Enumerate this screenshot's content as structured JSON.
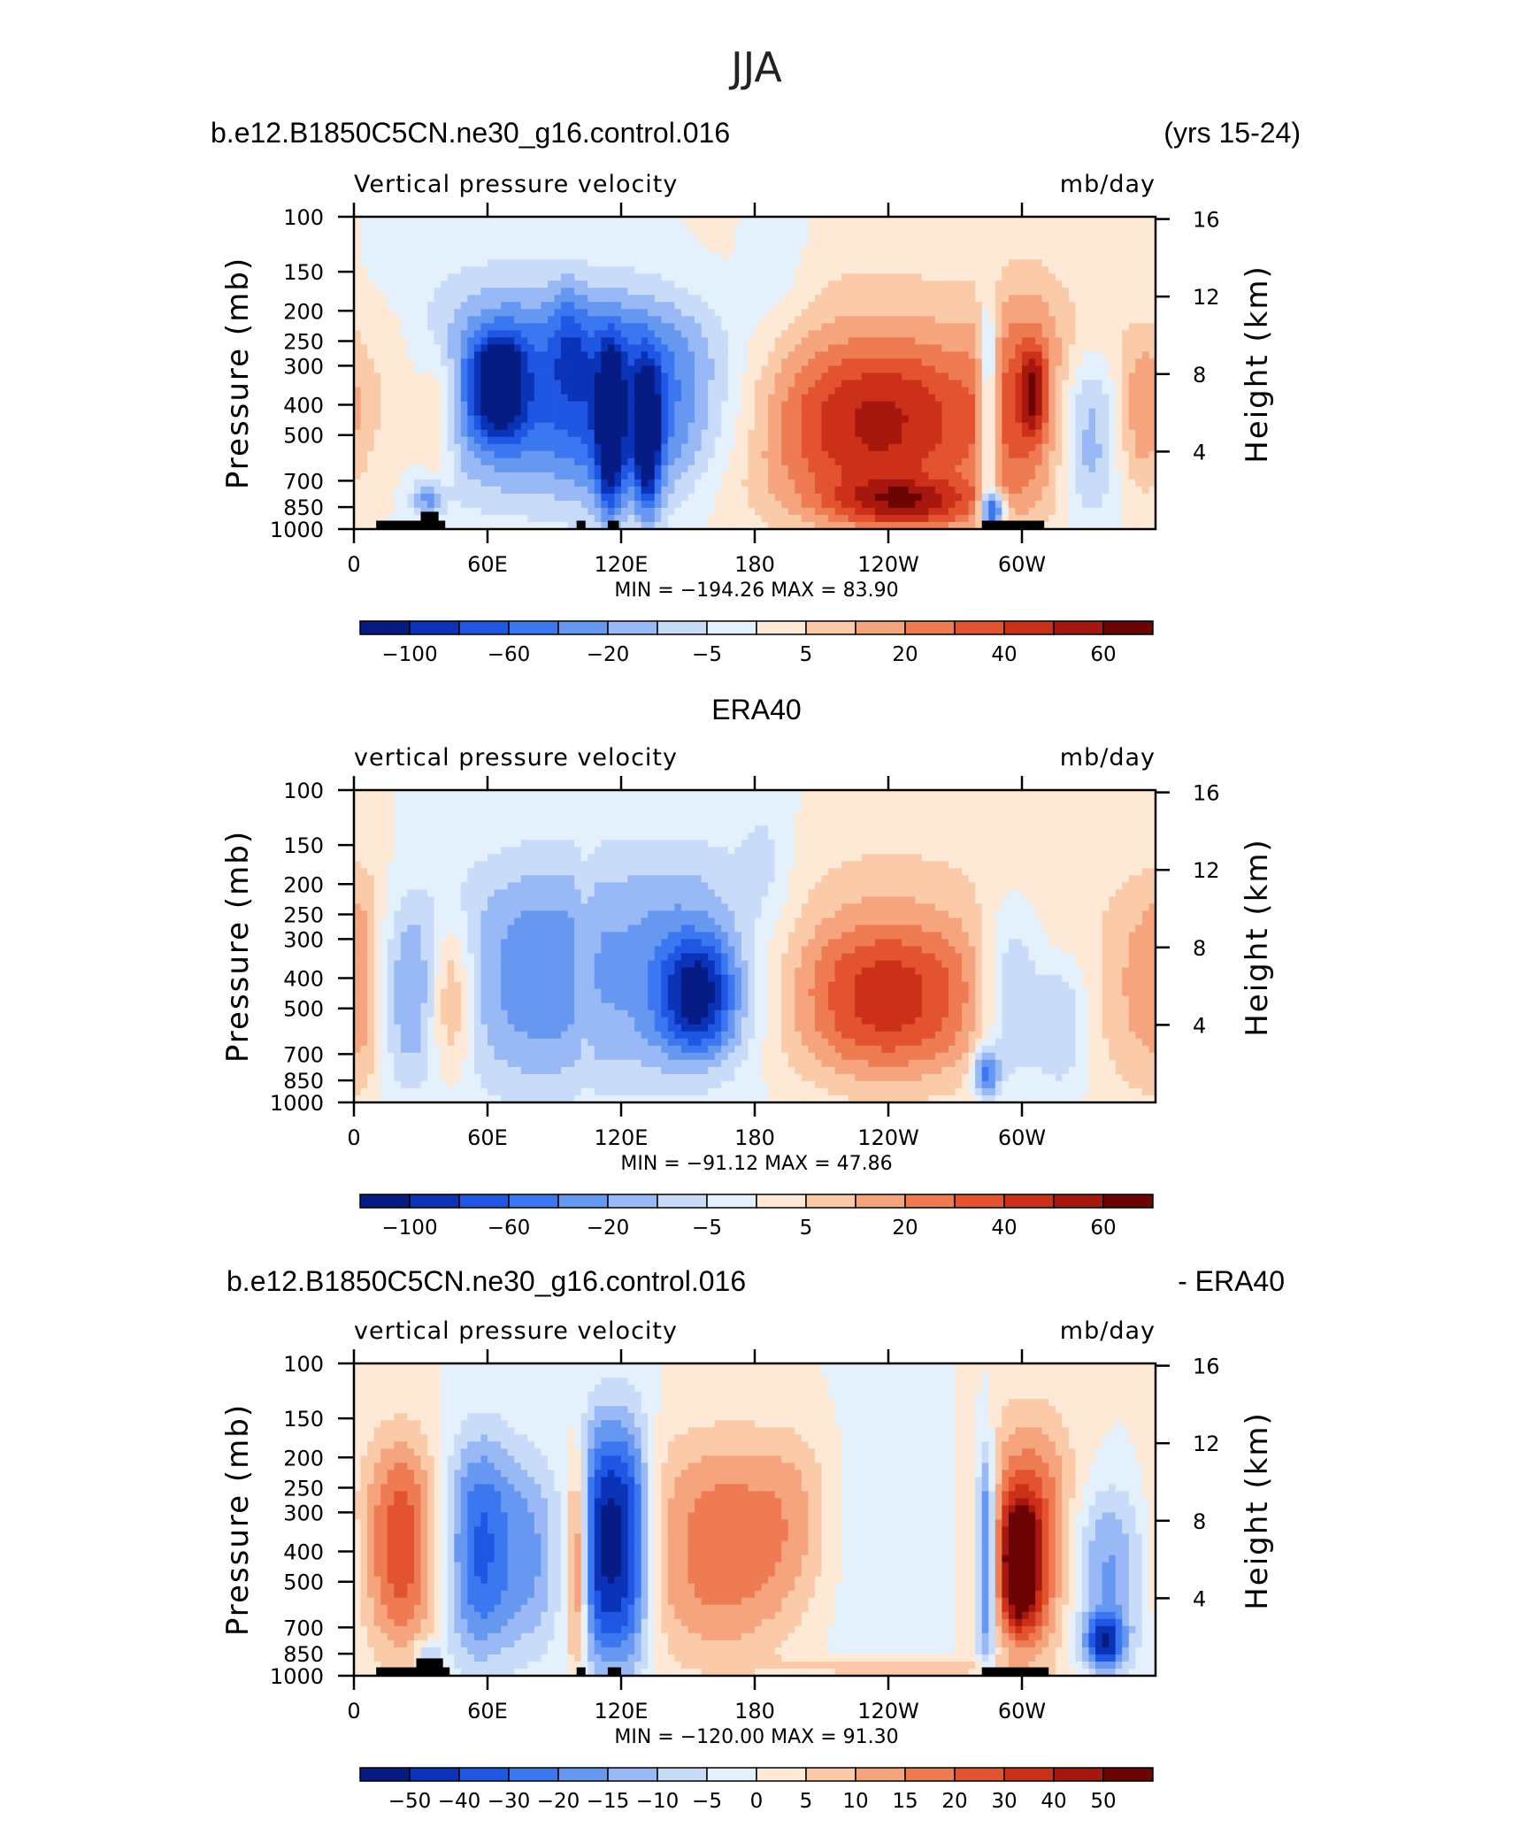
{
  "page_title": "JJA",
  "colors": {
    "frame": "#000000",
    "land_mask": "#000000"
  },
  "chart_data": [
    {
      "type": "heatmap",
      "panel_left_label": "b.e12.B1850C5CN.ne30_g16.control.016",
      "panel_right_label": "(yrs 15-24)",
      "field_label": "Vertical pressure velocity",
      "units_label": "mb/day",
      "ylabel": "Pressure (mb)",
      "y2label": "Height (km)",
      "xticks": [
        "0",
        "60E",
        "120E",
        "180",
        "120W",
        "60W"
      ],
      "xtick_lons": [
        0,
        60,
        120,
        180,
        240,
        300
      ],
      "xlim": [
        0,
        360
      ],
      "yticks": [
        "100",
        "150",
        "200",
        "250",
        "300",
        "400",
        "500",
        "700",
        "850",
        "1000"
      ],
      "ylim": [
        1000,
        100
      ],
      "log_y": true,
      "y2ticks": [
        "16",
        "12",
        "8",
        "4"
      ],
      "stats": {
        "min_label": "MIN =",
        "min": "−194.26",
        "max_label": "MAX =",
        "max": "83.90"
      },
      "colorbar": {
        "colors": [
          "#061c84",
          "#0b33b8",
          "#1f56e4",
          "#3a77f0",
          "#6698f2",
          "#98b9f5",
          "#c8dcfa",
          "#e5f0fd",
          "#fde9d6",
          "#fbcaa9",
          "#f6a47d",
          "#ef7b52",
          "#e3532f",
          "#cd3019",
          "#a6170d",
          "#6d0404"
        ],
        "labels": [
          "−100",
          "−60",
          "−20",
          "−5",
          "5",
          "20",
          "40",
          "60"
        ],
        "label_at_boundary": [
          1,
          3,
          5,
          7,
          9,
          11,
          13,
          15
        ]
      },
      "features": [
        {
          "lon": 20,
          "hw": 11,
          "top": 700,
          "bot": 200,
          "v": 1.6
        },
        {
          "lon": 38,
          "hw": 6,
          "top": 720,
          "bot": 250,
          "v": 2.4
        },
        {
          "lon": 33,
          "hw": 5,
          "top": 920,
          "bot": 700,
          "v": -3.0
        },
        {
          "lon": 70,
          "hw": 30,
          "top": 780,
          "bot": 160,
          "v": -4.6
        },
        {
          "lon": 65,
          "hw": 8,
          "top": 500,
          "bot": 240,
          "v": -5.6
        },
        {
          "lon": 97,
          "hw": 6,
          "top": 400,
          "bot": 160,
          "v": -1.8
        },
        {
          "lon": 123,
          "hw": 22,
          "top": 900,
          "bot": 180,
          "v": -4.4
        },
        {
          "lon": 115,
          "hw": 4,
          "top": 920,
          "bot": 260,
          "v": -5.2
        },
        {
          "lon": 132,
          "hw": 4,
          "top": 920,
          "bot": 300,
          "v": -5.2
        },
        {
          "lon": 158,
          "hw": 25,
          "top": 700,
          "bot": 180,
          "v": -2.4
        },
        {
          "lon": 235,
          "hw": 55,
          "top": 1000,
          "bot": 150,
          "v": 2.6
        },
        {
          "lon": 235,
          "hw": 38,
          "top": 850,
          "bot": 270,
          "v": 3.7
        },
        {
          "lon": 248,
          "hw": 25,
          "top": 1000,
          "bot": 700,
          "v": 4.3
        },
        {
          "lon": 285,
          "hw": 3,
          "top": 880,
          "bot": 180,
          "v": -4.5
        },
        {
          "lon": 287,
          "hw": 4,
          "top": 980,
          "bot": 760,
          "v": -6.6
        },
        {
          "lon": 303,
          "hw": 14,
          "top": 850,
          "bot": 150,
          "v": 2.5
        },
        {
          "lon": 305,
          "hw": 4,
          "top": 500,
          "bot": 260,
          "v": 3.4
        },
        {
          "lon": 330,
          "hw": 10,
          "top": 900,
          "bot": 280,
          "v": -3.3
        },
        {
          "lon": 354,
          "hw": 9,
          "top": 760,
          "bot": 220,
          "v": 2.6
        },
        {
          "lon": 190,
          "hw": 10,
          "top": 220,
          "bot": 100,
          "v": -1.0
        }
      ],
      "land_blocks": [
        [
          10,
          41,
          940
        ],
        [
          30,
          38,
          880
        ],
        [
          100,
          104,
          940
        ],
        [
          114,
          119,
          940
        ],
        [
          282,
          310,
          940
        ]
      ]
    },
    {
      "type": "heatmap",
      "panel_left_label": "ERA40",
      "panel_right_label": "",
      "panel_label_centered": true,
      "field_label": "vertical pressure velocity",
      "units_label": "mb/day",
      "ylabel": "Pressure (mb)",
      "y2label": "Height (km)",
      "xticks": [
        "0",
        "60E",
        "120E",
        "180",
        "120W",
        "60W"
      ],
      "xtick_lons": [
        0,
        60,
        120,
        180,
        240,
        300
      ],
      "xlim": [
        0,
        360
      ],
      "yticks": [
        "100",
        "150",
        "200",
        "250",
        "300",
        "400",
        "500",
        "700",
        "850",
        "1000"
      ],
      "ylim": [
        1000,
        100
      ],
      "log_y": true,
      "y2ticks": [
        "16",
        "12",
        "8",
        "4"
      ],
      "stats": {
        "min_label": "MIN =",
        "min": "−91.12",
        "max_label": "MAX =",
        "max": "47.86"
      },
      "colorbar": {
        "colors": [
          "#061c84",
          "#0b33b8",
          "#1f56e4",
          "#3a77f0",
          "#6698f2",
          "#98b9f5",
          "#c8dcfa",
          "#e5f0fd",
          "#fde9d6",
          "#fbcaa9",
          "#f6a47d",
          "#ef7b52",
          "#e3532f",
          "#cd3019",
          "#a6170d",
          "#6d0404"
        ],
        "labels": [
          "−100",
          "−60",
          "−20",
          "−5",
          "5",
          "20",
          "40",
          "60"
        ],
        "label_at_boundary": [
          1,
          3,
          5,
          7,
          9,
          11,
          13,
          15
        ]
      },
      "features": [
        {
          "lon": 5,
          "hw": 6,
          "top": 900,
          "bot": 180,
          "v": 1.4
        },
        {
          "lon": 25,
          "hw": 12,
          "top": 900,
          "bot": 220,
          "v": -2.8
        },
        {
          "lon": 43,
          "hw": 7,
          "top": 830,
          "bot": 260,
          "v": 3.5
        },
        {
          "lon": 80,
          "hw": 26,
          "top": 950,
          "bot": 160,
          "v": -3.4
        },
        {
          "lon": 104,
          "hw": 3,
          "top": 950,
          "bot": 140,
          "v": 0.8
        },
        {
          "lon": 150,
          "hw": 30,
          "top": 900,
          "bot": 150,
          "v": -3.7
        },
        {
          "lon": 155,
          "hw": 12,
          "top": 700,
          "bot": 300,
          "v": -5.0
        },
        {
          "lon": 235,
          "hw": 50,
          "top": 950,
          "bot": 150,
          "v": 2.3
        },
        {
          "lon": 240,
          "hw": 30,
          "top": 800,
          "bot": 280,
          "v": 3.4
        },
        {
          "lon": 284,
          "hw": 4,
          "top": 960,
          "bot": 660,
          "v": -4.5
        },
        {
          "lon": 295,
          "hw": 10,
          "top": 900,
          "bot": 230,
          "v": -3.2
        },
        {
          "lon": 318,
          "hw": 8,
          "top": 900,
          "bot": 350,
          "v": -2.4
        },
        {
          "lon": 355,
          "hw": 14,
          "top": 950,
          "bot": 180,
          "v": 2.2
        },
        {
          "lon": 185,
          "hw": 8,
          "top": 250,
          "bot": 100,
          "v": -1.0
        }
      ],
      "land_blocks": []
    },
    {
      "type": "heatmap",
      "panel_left_label": "b.e12.B1850C5CN.ne30_g16.control.016",
      "panel_right_label": "- ERA40",
      "field_label": "vertical pressure velocity",
      "units_label": "mb/day",
      "ylabel": "Pressure (mb)",
      "y2label": "Height (km)",
      "xticks": [
        "0",
        "60E",
        "120E",
        "180",
        "120W",
        "60W"
      ],
      "xtick_lons": [
        0,
        60,
        120,
        180,
        240,
        300
      ],
      "xlim": [
        0,
        360
      ],
      "yticks": [
        "100",
        "150",
        "200",
        "250",
        "300",
        "400",
        "500",
        "700",
        "850",
        "1000"
      ],
      "ylim": [
        1000,
        100
      ],
      "log_y": true,
      "y2ticks": [
        "16",
        "12",
        "8",
        "4"
      ],
      "stats": {
        "min_label": "MIN =",
        "min": "−120.00",
        "max_label": "MAX =",
        "max": "91.30"
      },
      "colorbar": {
        "colors": [
          "#061c84",
          "#0b33b8",
          "#1f56e4",
          "#3a77f0",
          "#6698f2",
          "#98b9f5",
          "#c8dcfa",
          "#e5f0fd",
          "#fde9d6",
          "#fbcaa9",
          "#f6a47d",
          "#ef7b52",
          "#e3532f",
          "#cd3019",
          "#a6170d",
          "#6d0404"
        ],
        "labels": [
          "−50",
          "−40",
          "−30",
          "−20",
          "−15",
          "−10",
          "−5",
          "0",
          "5",
          "10",
          "15",
          "20",
          "30",
          "40",
          "50"
        ],
        "label_at_boundary": [
          1,
          2,
          3,
          4,
          5,
          6,
          7,
          8,
          9,
          10,
          11,
          12,
          13,
          14,
          15
        ]
      },
      "features": [
        {
          "lon": 22,
          "hw": 13,
          "top": 850,
          "bot": 170,
          "v": 4.8
        },
        {
          "lon": 33,
          "hw": 4,
          "top": 920,
          "bot": 780,
          "v": -2.5
        },
        {
          "lon": 57,
          "hw": 13,
          "top": 900,
          "bot": 170,
          "v": -5.3
        },
        {
          "lon": 82,
          "hw": 8,
          "top": 850,
          "bot": 200,
          "v": -2.3
        },
        {
          "lon": 100,
          "hw": 3,
          "top": 950,
          "bot": 200,
          "v": 4.3
        },
        {
          "lon": 111,
          "hw": 7,
          "top": 950,
          "bot": 150,
          "v": -6.3
        },
        {
          "lon": 124,
          "hw": 7,
          "top": 950,
          "bot": 150,
          "v": -6.0
        },
        {
          "lon": 164,
          "hw": 25,
          "top": 900,
          "bot": 170,
          "v": 3.6
        },
        {
          "lon": 198,
          "hw": 14,
          "top": 600,
          "bot": 160,
          "v": 1.6
        },
        {
          "lon": 235,
          "hw": 25,
          "top": 900,
          "bot": 150,
          "v": -1.0
        },
        {
          "lon": 284,
          "hw": 3,
          "top": 960,
          "bot": 180,
          "v": -5.8
        },
        {
          "lon": 303,
          "hw": 14,
          "top": 900,
          "bot": 150,
          "v": 4.8
        },
        {
          "lon": 299,
          "hw": 6,
          "top": 700,
          "bot": 280,
          "v": 6.5
        },
        {
          "lon": 338,
          "hw": 12,
          "top": 950,
          "bot": 250,
          "v": -3.3
        },
        {
          "lon": 337,
          "hw": 6,
          "top": 950,
          "bot": 650,
          "v": -5.3
        },
        {
          "lon": 243,
          "hw": 30,
          "top": 1000,
          "bot": 870,
          "v": 2.2
        }
      ],
      "land_blocks": [
        [
          10,
          43,
          940
        ],
        [
          28,
          40,
          880
        ],
        [
          100,
          104,
          940
        ],
        [
          114,
          120,
          940
        ],
        [
          282,
          312,
          940
        ]
      ]
    }
  ]
}
